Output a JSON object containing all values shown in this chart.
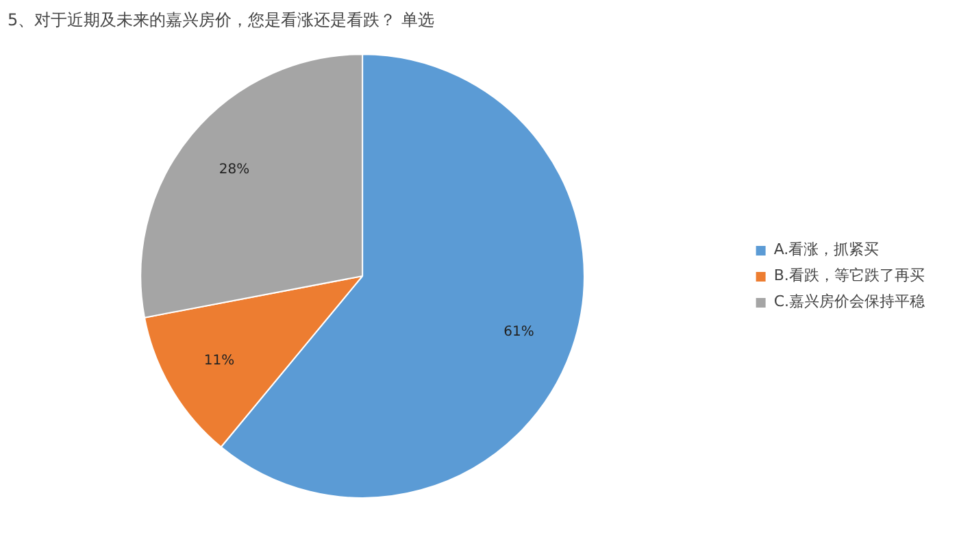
{
  "chart_data": {
    "type": "pie",
    "title": "5、对于近期及未来的嘉兴房价，您是看涨还是看跌？ 单选",
    "categories": [
      "A.看涨，抓紧买",
      "B.看跌，等它跌了再买",
      "C.嘉兴房价会保持平稳"
    ],
    "values": [
      61,
      11,
      28
    ],
    "colors": [
      "#5b9bd5",
      "#ed7d31",
      "#a5a5a5"
    ],
    "value_labels": [
      "61%",
      "11%",
      "28%"
    ],
    "legend": "right"
  }
}
